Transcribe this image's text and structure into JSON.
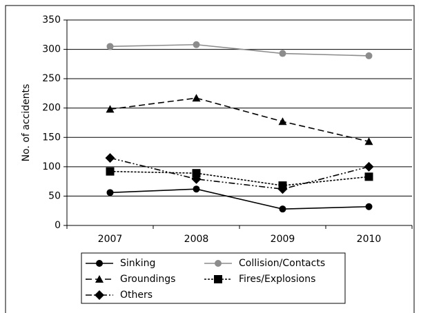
{
  "chart_data": {
    "type": "line",
    "y_label": "No. of accidents",
    "categories": [
      "2007",
      "2008",
      "2009",
      "2010"
    ],
    "series": [
      {
        "name": "Sinking",
        "color": "#000000",
        "values": [
          56,
          62,
          28,
          32
        ]
      },
      {
        "name": "Collision/Contacts",
        "color": "#8c8c8c",
        "values": [
          305,
          308,
          293,
          289
        ]
      },
      {
        "name": "Groundings",
        "color": "#000000",
        "values": [
          198,
          217,
          177,
          143
        ]
      },
      {
        "name": "Fires/Explosions",
        "color": "#000000",
        "values": [
          92,
          89,
          68,
          83
        ]
      },
      {
        "name": "Others",
        "color": "#000000",
        "values": [
          115,
          79,
          62,
          100
        ]
      }
    ],
    "ylim": [
      0,
      350
    ],
    "yticks": [
      0,
      50,
      100,
      150,
      200,
      250,
      300,
      350
    ],
    "grid": true
  }
}
